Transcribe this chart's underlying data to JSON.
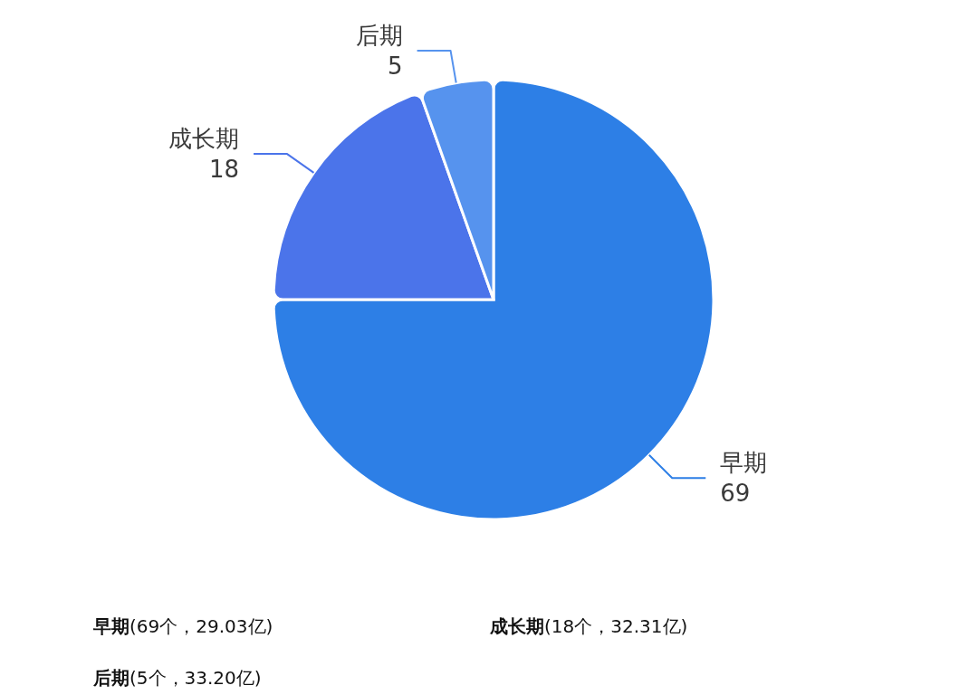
{
  "chart_data": {
    "type": "pie",
    "categories": [
      "早期",
      "成长期",
      "后期"
    ],
    "values": [
      69,
      18,
      5
    ],
    "colors": [
      "#2d7fe6",
      "#4b74ea",
      "#5693ee"
    ],
    "data_labels": true,
    "annotations": [
      "早期(69个，29.03亿)",
      "成长期(18个，32.31亿)",
      "后期(5个，33.20亿)"
    ]
  }
}
